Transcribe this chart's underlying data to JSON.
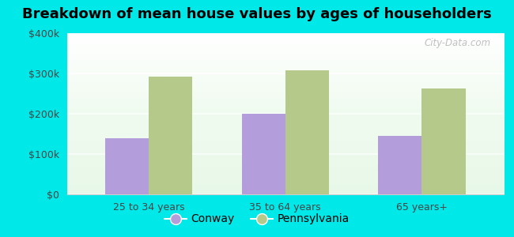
{
  "title": "Breakdown of mean house values by ages of householders",
  "categories": [
    "25 to 34 years",
    "35 to 64 years",
    "65 years+"
  ],
  "conway_values": [
    140000,
    200000,
    145000
  ],
  "pennsylvania_values": [
    293000,
    308000,
    263000
  ],
  "conway_color": "#b39ddb",
  "pennsylvania_color": "#b5c98a",
  "background_color": "#00e8e8",
  "ylim": [
    0,
    400000
  ],
  "yticks": [
    0,
    100000,
    200000,
    300000,
    400000
  ],
  "ytick_labels": [
    "$0",
    "$100k",
    "$200k",
    "$300k",
    "$400k"
  ],
  "legend_labels": [
    "Conway",
    "Pennsylvania"
  ],
  "title_fontsize": 13,
  "tick_fontsize": 9,
  "legend_fontsize": 10,
  "bar_width": 0.32,
  "watermark": "City-Data.com",
  "grid_color": "#ddeecc",
  "plot_bg_top": "#f5fff5",
  "plot_bg_bottom": "#d4f0d4"
}
